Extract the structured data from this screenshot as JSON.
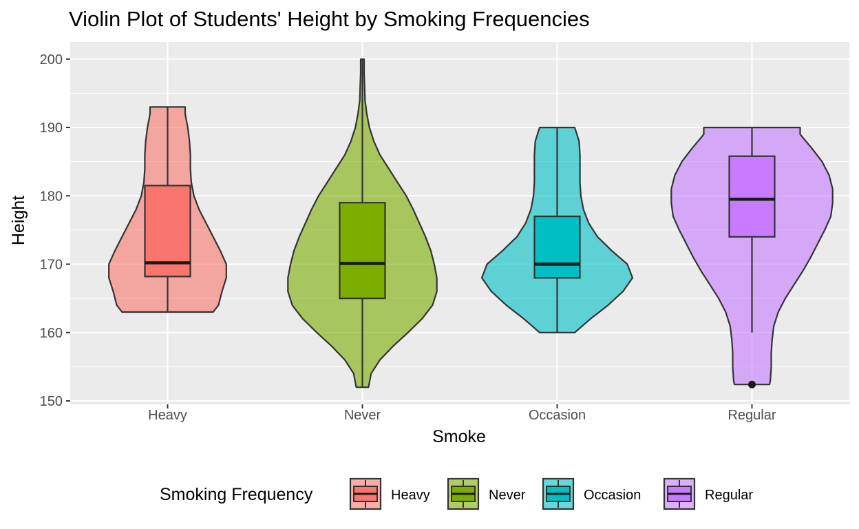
{
  "chart_data": {
    "type": "violin",
    "title": "Violin Plot of Students' Height by Smoking Frequencies",
    "xlabel": "Smoke",
    "ylabel": "Height",
    "ylim": [
      149.5,
      202.5
    ],
    "yticks": [
      150,
      160,
      170,
      180,
      190,
      200
    ],
    "ytick_labels": [
      "150",
      "160",
      "170",
      "180",
      "190",
      "200"
    ],
    "grid": true,
    "legend": {
      "title": "Smoking Frequency",
      "position": "bottom"
    },
    "categories": [
      "Heavy",
      "Never",
      "Occasion",
      "Regular"
    ],
    "series": [
      {
        "name": "Heavy",
        "color": "#F8766D",
        "box": {
          "min": 163,
          "q1": 168.2,
          "median": 170.2,
          "q3": 181.5,
          "max": 193
        },
        "outliers": [],
        "violin": [
          [
            163,
            0.52
          ],
          [
            164,
            0.58
          ],
          [
            166,
            0.62
          ],
          [
            168,
            0.67
          ],
          [
            170,
            0.67
          ],
          [
            172,
            0.6
          ],
          [
            174,
            0.52
          ],
          [
            176,
            0.44
          ],
          [
            178,
            0.36
          ],
          [
            180,
            0.3
          ],
          [
            182,
            0.27
          ],
          [
            184,
            0.26
          ],
          [
            186,
            0.26
          ],
          [
            188,
            0.25
          ],
          [
            190,
            0.23
          ],
          [
            192,
            0.2
          ],
          [
            193,
            0.2
          ]
        ]
      },
      {
        "name": "Never",
        "color": "#7CAE00",
        "box": {
          "min": 152,
          "q1": 165,
          "median": 170.1,
          "q3": 179,
          "max": 200
        },
        "outliers": [],
        "violin": [
          [
            152,
            0.07
          ],
          [
            154,
            0.1
          ],
          [
            156,
            0.2
          ],
          [
            158,
            0.35
          ],
          [
            160,
            0.52
          ],
          [
            162,
            0.68
          ],
          [
            164,
            0.8
          ],
          [
            166,
            0.85
          ],
          [
            168,
            0.85
          ],
          [
            170,
            0.82
          ],
          [
            172,
            0.78
          ],
          [
            174,
            0.72
          ],
          [
            176,
            0.65
          ],
          [
            178,
            0.58
          ],
          [
            180,
            0.5
          ],
          [
            182,
            0.4
          ],
          [
            184,
            0.3
          ],
          [
            186,
            0.2
          ],
          [
            188,
            0.13
          ],
          [
            190,
            0.08
          ],
          [
            192,
            0.05
          ],
          [
            194,
            0.03
          ],
          [
            196,
            0.025
          ],
          [
            198,
            0.02
          ],
          [
            200,
            0.02
          ]
        ]
      },
      {
        "name": "Occasion",
        "color": "#00BFC4",
        "box": {
          "min": 160,
          "q1": 168,
          "median": 170,
          "q3": 177,
          "max": 190
        },
        "outliers": [],
        "violin": [
          [
            160,
            0.2
          ],
          [
            162,
            0.38
          ],
          [
            164,
            0.58
          ],
          [
            166,
            0.75
          ],
          [
            168,
            0.86
          ],
          [
            170,
            0.8
          ],
          [
            172,
            0.62
          ],
          [
            174,
            0.46
          ],
          [
            176,
            0.36
          ],
          [
            178,
            0.3
          ],
          [
            180,
            0.27
          ],
          [
            182,
            0.26
          ],
          [
            184,
            0.26
          ],
          [
            186,
            0.26
          ],
          [
            188,
            0.25
          ],
          [
            190,
            0.2
          ]
        ]
      },
      {
        "name": "Regular",
        "color": "#C77CFF",
        "box": {
          "min": 160,
          "q1": 174,
          "median": 179.5,
          "q3": 185.8,
          "max": 190
        },
        "outliers": [
          152.4
        ],
        "violin": [
          [
            152.4,
            0.2
          ],
          [
            153,
            0.21
          ],
          [
            155,
            0.22
          ],
          [
            157,
            0.22
          ],
          [
            159,
            0.23
          ],
          [
            161,
            0.25
          ],
          [
            163,
            0.3
          ],
          [
            165,
            0.38
          ],
          [
            167,
            0.48
          ],
          [
            169,
            0.58
          ],
          [
            171,
            0.67
          ],
          [
            173,
            0.75
          ],
          [
            175,
            0.83
          ],
          [
            177,
            0.9
          ],
          [
            179,
            0.92
          ],
          [
            181,
            0.92
          ],
          [
            183,
            0.88
          ],
          [
            185,
            0.8
          ],
          [
            187,
            0.68
          ],
          [
            189,
            0.55
          ],
          [
            190,
            0.55
          ]
        ]
      }
    ]
  }
}
